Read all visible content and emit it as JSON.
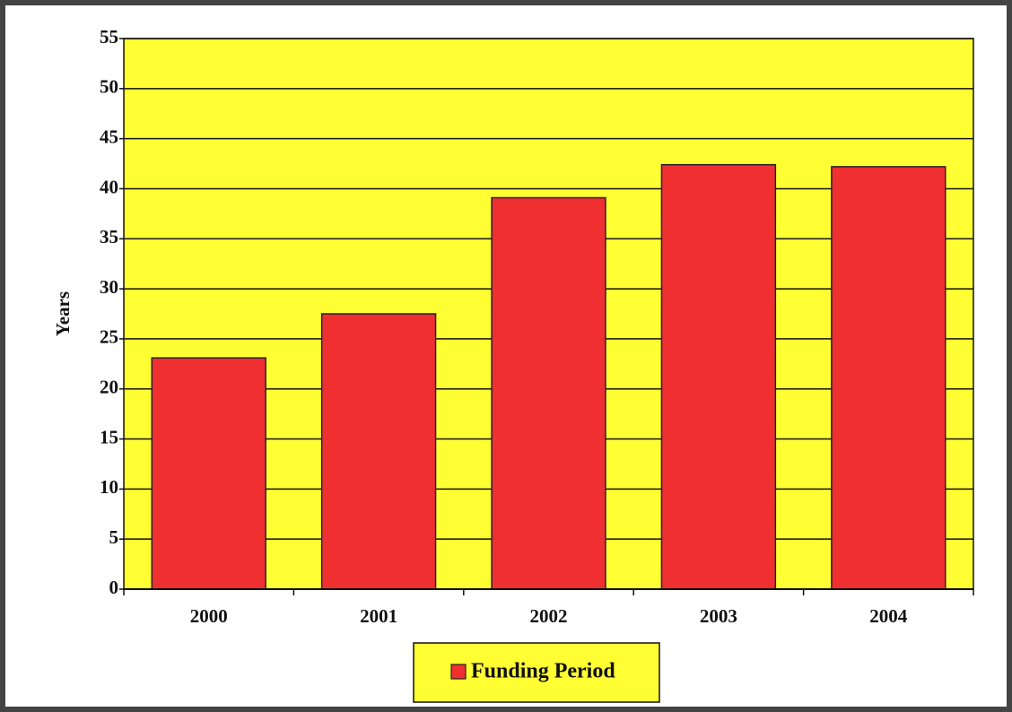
{
  "chart_data": {
    "type": "bar",
    "y_label": "Years",
    "categories": [
      "2000",
      "2001",
      "2002",
      "2003",
      "2004"
    ],
    "series": [
      {
        "name": "Funding Period",
        "color": "#f03030",
        "values": [
          23.1,
          27.5,
          39.1,
          42.4,
          42.2
        ]
      }
    ],
    "ylim": [
      0,
      55
    ],
    "yticks": [
      0,
      5,
      10,
      15,
      20,
      25,
      30,
      35,
      40,
      45,
      50,
      55
    ],
    "grid": true,
    "plot_background": "#ffff33",
    "legend": "bottom"
  }
}
